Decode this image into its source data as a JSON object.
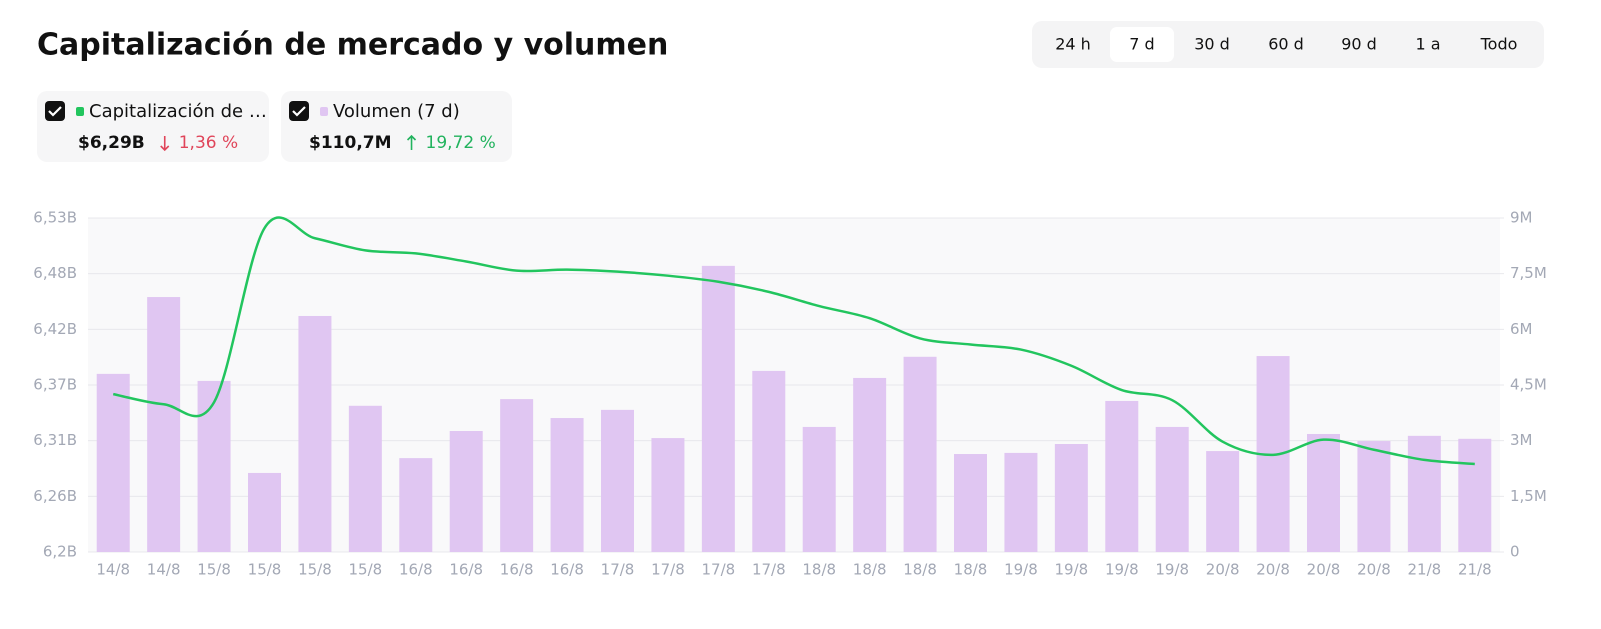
{
  "title": "Capitalización de mercado y volumen",
  "controls": {
    "ranges": [
      "24 h",
      "7 d",
      "30 d",
      "60 d",
      "90 d",
      "1 a",
      "Todo"
    ],
    "active": 1
  },
  "legend_stats": [
    {
      "value": "$6,29B",
      "change": "1,36 %",
      "direction": "down",
      "color": "#e0455a"
    },
    {
      "value": "$110,7M",
      "change": "19,72 %",
      "direction": "up",
      "color": "#22b35e"
    }
  ],
  "chart_data": {
    "type": "bar",
    "categories": [
      "14/8",
      "14/8",
      "15/8",
      "15/8",
      "15/8",
      "15/8",
      "16/8",
      "16/8",
      "16/8",
      "16/8",
      "17/8",
      "17/8",
      "17/8",
      "17/8",
      "18/8",
      "18/8",
      "18/8",
      "18/8",
      "19/8",
      "19/8",
      "19/8",
      "19/8",
      "20/8",
      "20/8",
      "20/8",
      "20/8",
      "21/8",
      "21/8"
    ],
    "series": [
      {
        "name": "Capitalización de …",
        "type": "line",
        "color": "#22c55e",
        "values": [
          6.356,
          6.346,
          6.348,
          6.52,
          6.51,
          6.498,
          6.495,
          6.487,
          6.478,
          6.479,
          6.477,
          6.473,
          6.467,
          6.457,
          6.443,
          6.431,
          6.411,
          6.405,
          6.4,
          6.384,
          6.36,
          6.35,
          6.309,
          6.296,
          6.311,
          6.301,
          6.291,
          6.287
        ]
      },
      {
        "name": "Volumen (7 d)",
        "type": "bar",
        "axis": "y2",
        "color": "#e0c6f2",
        "values": [
          4800000,
          6870000,
          4610000,
          2130000,
          6360000,
          3940000,
          2530000,
          3260000,
          4120000,
          3610000,
          3830000,
          3070000,
          7710000,
          4880000,
          3370000,
          4690000,
          5260000,
          2640000,
          2670000,
          2910000,
          4070000,
          3370000,
          2720000,
          5280000,
          3180000,
          2990000,
          3130000,
          3050000
        ]
      }
    ],
    "ylim": [
      6.2,
      6.53
    ],
    "yticks": [
      {
        "value": 6.2,
        "label": "6,2B"
      },
      {
        "value": 6.255,
        "label": "6,26B"
      },
      {
        "value": 6.31,
        "label": "6,31B"
      },
      {
        "value": 6.365,
        "label": "6,37B"
      },
      {
        "value": 6.42,
        "label": "6,42B"
      },
      {
        "value": 6.475,
        "label": "6,48B"
      },
      {
        "value": 6.53,
        "label": "6,53B"
      }
    ],
    "y2lim": [
      0,
      9000000
    ],
    "y2ticks": [
      0,
      {
        "value": 1500000,
        "label": "1,5M"
      },
      {
        "value": 3000000,
        "label": "3M"
      },
      {
        "value": 4500000,
        "label": "4,5M"
      },
      {
        "value": 6000000,
        "label": "6M"
      },
      {
        "value": 7500000,
        "label": "7,5M"
      },
      {
        "value": 9000000,
        "label": "9M"
      }
    ],
    "grid": true
  }
}
